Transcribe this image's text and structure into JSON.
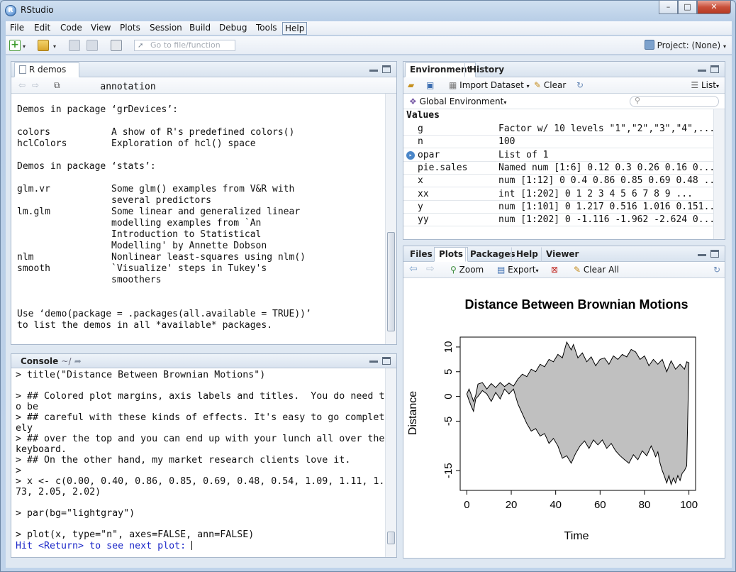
{
  "window": {
    "title": "RStudio"
  },
  "menu": [
    "File",
    "Edit",
    "Code",
    "View",
    "Plots",
    "Session",
    "Build",
    "Debug",
    "Tools",
    "Help"
  ],
  "toolbar": {
    "goto_placeholder": "Go to file/function",
    "project": "Project: (None)"
  },
  "source_pane": {
    "tab": "R demos",
    "lines": [
      "               annotation",
      "",
      "Demos in package ‘grDevices’:",
      "",
      "colors           A show of R's predefined colors()",
      "hclColors        Exploration of hcl() space",
      "",
      "Demos in package ‘stats’:",
      "",
      "glm.vr           Some glm() examples from V&R with",
      "                 several predictors",
      "lm.glm           Some linear and generalized linear",
      "                 modelling examples from `An",
      "                 Introduction to Statistical",
      "                 Modelling' by Annette Dobson",
      "nlm              Nonlinear least-squares using nlm()",
      "smooth           `Visualize' steps in Tukey's",
      "                 smoothers",
      "",
      "",
      "Use ‘demo(package = .packages(all.available = TRUE))’",
      "to list the demos in all *available* packages."
    ]
  },
  "console": {
    "tab": "Console",
    "path": "~/",
    "lines": [
      "> title(\"Distance Between Brownian Motions\")",
      "",
      "> ## Colored plot margins, axis labels and titles.  You do need t",
      "o be",
      "> ## careful with these kinds of effects. It's easy to go complet",
      "ely",
      "> ## over the top and you can end up with your lunch all over the",
      "keyboard.",
      "> ## On the other hand, my market research clients love it.",
      ">",
      "> x <- c(0.00, 0.40, 0.86, 0.85, 0.69, 0.48, 0.54, 1.09, 1.11, 1.",
      "73, 2.05, 2.02)",
      "",
      "> par(bg=\"lightgray\")",
      "",
      "> plot(x, type=\"n\", axes=FALSE, ann=FALSE)"
    ],
    "prompt_line": "Hit <Return> to see next plot: "
  },
  "environment": {
    "tabs": [
      "Environment",
      "History"
    ],
    "import_label": "Import Dataset",
    "clear_label": "Clear",
    "list_label": "List",
    "scope": "Global Environment",
    "section": "Values",
    "rows": [
      {
        "name": "g",
        "value": "Factor w/ 10 levels \"1\",\"2\",\"3\",\"4\",..."
      },
      {
        "name": "n",
        "value": "100"
      },
      {
        "name": "opar",
        "value": "List of 1"
      },
      {
        "name": "pie.sales",
        "value": "Named num [1:6] 0.12 0.3 0.26 0.16 0..."
      },
      {
        "name": "x",
        "value": "num [1:12] 0 0.4 0.86 0.85 0.69 0.48 ..."
      },
      {
        "name": "xx",
        "value": "int [1:202] 0 1 2 3 4 5 6 7 8 9 ..."
      },
      {
        "name": "y",
        "value": "num [1:101] 0 1.217 0.516 1.016 0.151..."
      },
      {
        "name": "yy",
        "value": "num [1:202] 0 -1.116 -1.962 -2.624 0..."
      }
    ]
  },
  "files": {
    "tabs": [
      "Files",
      "Plots",
      "Packages",
      "Help",
      "Viewer"
    ],
    "zoom_label": "Zoom",
    "export_label": "Export",
    "clearall_label": "Clear All"
  },
  "chart_data": {
    "type": "area",
    "title": "Distance Between Brownian Motions",
    "xlabel": "Time",
    "ylabel": "Distance",
    "xticks": [
      0,
      20,
      40,
      60,
      80,
      100
    ],
    "yticks": [
      10,
      5,
      0,
      -5,
      -15
    ],
    "xlim": [
      -3,
      103
    ],
    "ylim": [
      -19,
      12
    ],
    "upper": [
      [
        0,
        0.5
      ],
      [
        1,
        1.5
      ],
      [
        2,
        0.3
      ],
      [
        3,
        -1.0
      ],
      [
        4,
        0.2
      ],
      [
        5,
        2.5
      ],
      [
        7,
        2.8
      ],
      [
        9,
        1.5
      ],
      [
        11,
        2.6
      ],
      [
        13,
        1.8
      ],
      [
        15,
        2.8
      ],
      [
        17,
        2.0
      ],
      [
        19,
        2.7
      ],
      [
        21,
        2.1
      ],
      [
        23,
        3.5
      ],
      [
        25,
        4.5
      ],
      [
        27,
        4.0
      ],
      [
        29,
        5.5
      ],
      [
        31,
        5.0
      ],
      [
        33,
        6.5
      ],
      [
        35,
        6.0
      ],
      [
        37,
        7.5
      ],
      [
        39,
        7.0
      ],
      [
        41,
        8.5
      ],
      [
        43,
        7.8
      ],
      [
        45,
        11.0
      ],
      [
        46,
        10.2
      ],
      [
        47,
        9.4
      ],
      [
        48,
        10.5
      ],
      [
        50,
        7.8
      ],
      [
        52,
        8.8
      ],
      [
        54,
        7.0
      ],
      [
        56,
        8.0
      ],
      [
        58,
        6.2
      ],
      [
        60,
        7.5
      ],
      [
        62,
        7.8
      ],
      [
        64,
        6.5
      ],
      [
        66,
        8.2
      ],
      [
        68,
        7.5
      ],
      [
        70,
        8.5
      ],
      [
        72,
        8.0
      ],
      [
        74,
        9.5
      ],
      [
        76,
        9.0
      ],
      [
        78,
        7.5
      ],
      [
        80,
        8.2
      ],
      [
        82,
        6.2
      ],
      [
        84,
        7.5
      ],
      [
        86,
        6.5
      ],
      [
        88,
        7.5
      ],
      [
        90,
        5.0
      ],
      [
        92,
        7.2
      ],
      [
        94,
        5.5
      ],
      [
        96,
        6.5
      ],
      [
        98,
        5.5
      ],
      [
        99,
        7.0
      ],
      [
        100,
        6.8
      ]
    ],
    "lower": [
      [
        100,
        6.8
      ],
      [
        99,
        -14.0
      ],
      [
        98,
        -15.0
      ],
      [
        97,
        -15.5
      ],
      [
        96,
        -17.0
      ],
      [
        95,
        -16.0
      ],
      [
        94,
        -17.5
      ],
      [
        93,
        -16.5
      ],
      [
        92,
        -17.8
      ],
      [
        91,
        -16.0
      ],
      [
        90,
        -17.5
      ],
      [
        89,
        -16.2
      ],
      [
        88,
        -15.0
      ],
      [
        87,
        -13.5
      ],
      [
        86,
        -11.2
      ],
      [
        85,
        -12.2
      ],
      [
        84,
        -11.0
      ],
      [
        83,
        -10.0
      ],
      [
        81,
        -12.0
      ],
      [
        79,
        -11.0
      ],
      [
        77,
        -12.8
      ],
      [
        75,
        -11.8
      ],
      [
        73,
        -13.5
      ],
      [
        71,
        -12.8
      ],
      [
        69,
        -12.0
      ],
      [
        67,
        -11.0
      ],
      [
        65,
        -9.5
      ],
      [
        63,
        -10.5
      ],
      [
        61,
        -8.8
      ],
      [
        59,
        -9.8
      ],
      [
        57,
        -8.8
      ],
      [
        55,
        -10.5
      ],
      [
        53,
        -9.0
      ],
      [
        51,
        -10.0
      ],
      [
        49,
        -11.5
      ],
      [
        47,
        -13.5
      ],
      [
        45,
        -12.0
      ],
      [
        43,
        -12.5
      ],
      [
        41,
        -10.0
      ],
      [
        39,
        -8.5
      ],
      [
        37,
        -9.5
      ],
      [
        35,
        -7.5
      ],
      [
        33,
        -8.0
      ],
      [
        31,
        -6.5
      ],
      [
        29,
        -7.0
      ],
      [
        27,
        -5.5
      ],
      [
        25,
        -3.5
      ],
      [
        23,
        -1.5
      ],
      [
        21,
        1.5
      ],
      [
        19,
        0.5
      ],
      [
        17,
        1.5
      ],
      [
        15,
        -0.5
      ],
      [
        13,
        0.8
      ],
      [
        11,
        -1.0
      ],
      [
        9,
        0.5
      ],
      [
        7,
        1.2
      ],
      [
        5,
        0.0
      ],
      [
        4,
        -0.5
      ],
      [
        3,
        -3.0
      ],
      [
        2,
        -2.0
      ],
      [
        1,
        -0.8
      ],
      [
        0,
        0.5
      ]
    ],
    "fill": "#c0c0c0"
  }
}
